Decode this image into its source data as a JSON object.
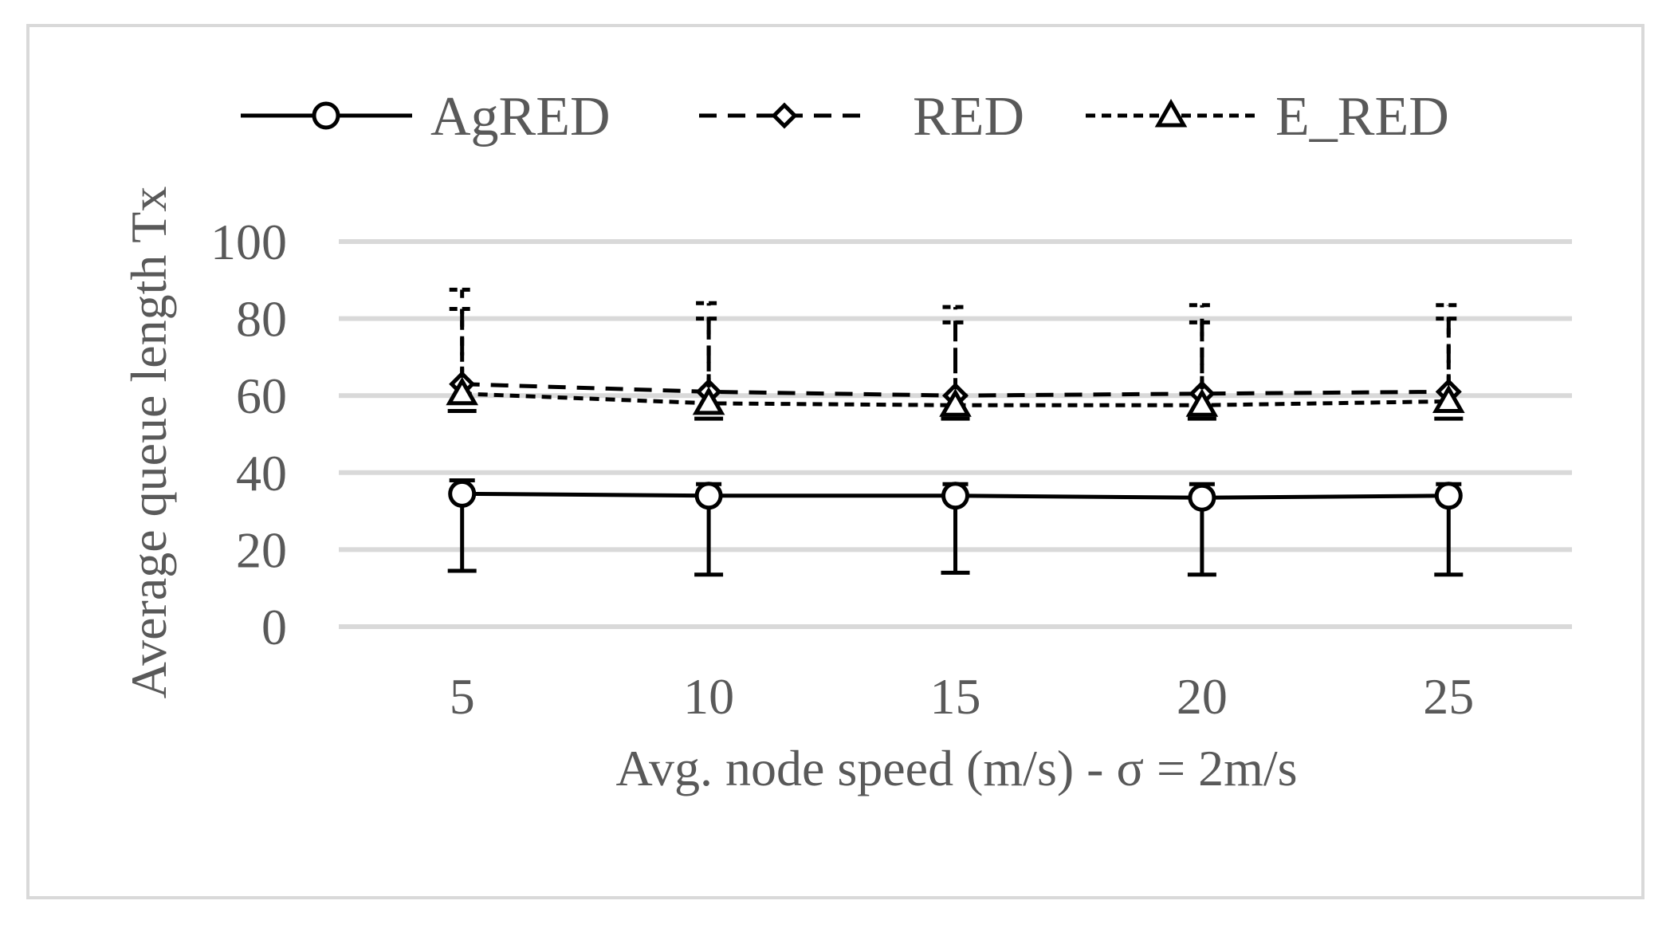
{
  "chart_data": {
    "type": "line",
    "categories": [
      "5",
      "10",
      "15",
      "20",
      "25"
    ],
    "xlabel": "Avg. node speed (m/s) - σ = 2m/s",
    "ylabel": "Average queue length Tx",
    "ylim": [
      0,
      100
    ],
    "yticks": [
      "0",
      "20",
      "40",
      "60",
      "80",
      "100"
    ],
    "grid": true,
    "legend_position": "top",
    "gridline_color": "#d9d9d9",
    "series": [
      {
        "name": "AgRED",
        "values": [
          34.5,
          34,
          34,
          33.5,
          34
        ],
        "error_low": [
          14.5,
          13.5,
          14,
          13.5,
          13.5
        ],
        "error_high": [
          38,
          37,
          37,
          37,
          37
        ],
        "marker": "circle",
        "line_style": "solid",
        "color": "#000000"
      },
      {
        "name": "RED",
        "values": [
          63,
          61,
          60,
          60.5,
          61
        ],
        "error_high": [
          87.5,
          84,
          83,
          83.5,
          83.5
        ],
        "marker": "diamond",
        "line_style": "dashed",
        "color": "#000000"
      },
      {
        "name": "E_RED",
        "values": [
          60.5,
          58,
          57.5,
          57.5,
          58.5
        ],
        "error_low": [
          56,
          54,
          54,
          54,
          54
        ],
        "error_high": [
          82.5,
          80,
          79,
          79,
          80
        ],
        "marker": "triangle",
        "line_style": "dotted",
        "color": "#000000"
      }
    ]
  }
}
